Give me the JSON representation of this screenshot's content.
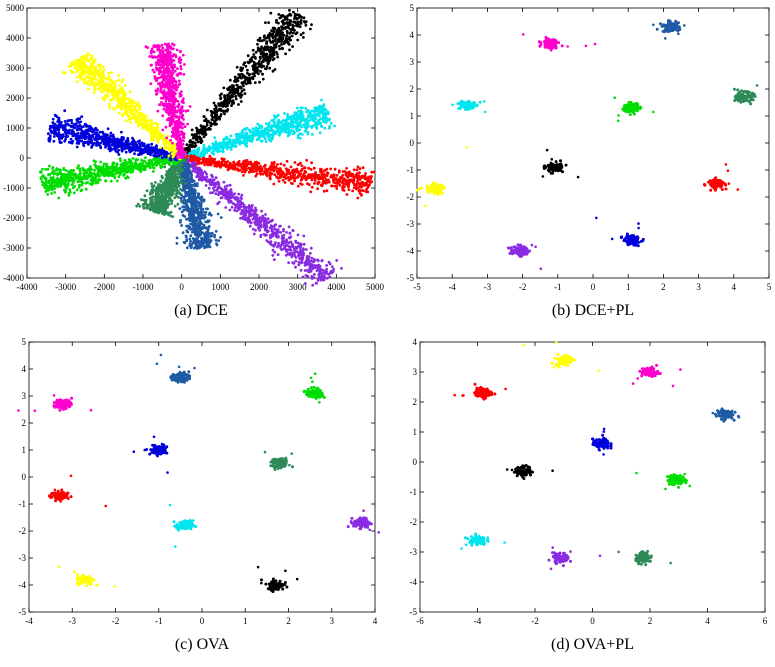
{
  "chart_data": [
    {
      "type": "scatter",
      "caption": "(a) DCE",
      "xlim": [
        -4000,
        5000
      ],
      "ylim": [
        -4000,
        5000
      ],
      "xticks": [
        -4000,
        -3000,
        -2000,
        -1000,
        0,
        1000,
        2000,
        3000,
        4000,
        5000
      ],
      "yticks": [
        -4000,
        -3000,
        -2000,
        -1000,
        0,
        1000,
        2000,
        3000,
        4000,
        5000
      ],
      "series": [
        {
          "color": "#000000",
          "shape": "ray",
          "from": [
            0,
            0
          ],
          "to": [
            3000,
            4800
          ]
        },
        {
          "color": "#00e5ee",
          "shape": "ray",
          "from": [
            0,
            0
          ],
          "to": [
            3800,
            1500
          ]
        },
        {
          "color": "#ff0000",
          "shape": "ray",
          "from": [
            0,
            0
          ],
          "to": [
            4900,
            -900
          ]
        },
        {
          "color": "#8a2be2",
          "shape": "ray",
          "from": [
            0,
            0
          ],
          "to": [
            3800,
            -4000
          ]
        },
        {
          "color": "#1f5aa6",
          "shape": "ray",
          "from": [
            0,
            0
          ],
          "to": [
            550,
            -3000
          ]
        },
        {
          "color": "#2e8b57",
          "shape": "ray",
          "from": [
            0,
            0
          ],
          "to": [
            -700,
            -1800
          ]
        },
        {
          "color": "#00dd00",
          "shape": "ray",
          "from": [
            0,
            0
          ],
          "to": [
            -3600,
            -850
          ]
        },
        {
          "color": "#0000dd",
          "shape": "ray",
          "from": [
            0,
            0
          ],
          "to": [
            -3400,
            1050
          ]
        },
        {
          "color": "#ffff00",
          "shape": "ray",
          "from": [
            0,
            0
          ],
          "to": [
            -2700,
            3300
          ]
        },
        {
          "color": "#ff00cc",
          "shape": "ray",
          "from": [
            0,
            0
          ],
          "to": [
            -500,
            3800
          ]
        }
      ]
    },
    {
      "type": "scatter",
      "caption": "(b) DCE+PL",
      "xlim": [
        -5,
        5
      ],
      "ylim": [
        -5,
        5
      ],
      "xticks": [
        -5,
        -4,
        -3,
        -2,
        -1,
        0,
        1,
        2,
        3,
        4,
        5
      ],
      "yticks": [
        -5,
        -4,
        -3,
        -2,
        -1,
        0,
        1,
        2,
        3,
        4,
        5
      ],
      "series": [
        {
          "color": "#1f5aa6",
          "center": [
            2.2,
            4.3
          ]
        },
        {
          "color": "#ff00cc",
          "center": [
            -1.2,
            3.7
          ]
        },
        {
          "color": "#00e5ee",
          "center": [
            -3.6,
            1.4
          ]
        },
        {
          "color": "#00dd00",
          "center": [
            1.1,
            1.3
          ]
        },
        {
          "color": "#2e8b57",
          "center": [
            4.3,
            1.7
          ]
        },
        {
          "color": "#000000",
          "center": [
            -1.1,
            -0.9
          ]
        },
        {
          "color": "#ffff00",
          "center": [
            -4.5,
            -1.7
          ]
        },
        {
          "color": "#ff0000",
          "center": [
            3.5,
            -1.5
          ]
        },
        {
          "color": "#0000dd",
          "center": [
            1.1,
            -3.6
          ]
        },
        {
          "color": "#8a2be2",
          "center": [
            -2.1,
            -4.0
          ]
        }
      ]
    },
    {
      "type": "scatter",
      "caption": "(c) OVA",
      "xlim": [
        -4,
        4
      ],
      "ylim": [
        -5,
        5
      ],
      "xticks": [
        -4,
        -3,
        -2,
        -1,
        0,
        1,
        2,
        3,
        4
      ],
      "yticks": [
        -5,
        -4,
        -3,
        -2,
        -1,
        0,
        1,
        2,
        3,
        4,
        5
      ],
      "series": [
        {
          "color": "#1f5aa6",
          "center": [
            -0.5,
            3.7
          ]
        },
        {
          "color": "#ff00cc",
          "center": [
            -3.2,
            2.7
          ]
        },
        {
          "color": "#00dd00",
          "center": [
            2.6,
            3.1
          ]
        },
        {
          "color": "#0000dd",
          "center": [
            -1.0,
            1.0
          ]
        },
        {
          "color": "#2e8b57",
          "center": [
            1.8,
            0.5
          ]
        },
        {
          "color": "#ff0000",
          "center": [
            -3.3,
            -0.7
          ]
        },
        {
          "color": "#00e5ee",
          "center": [
            -0.4,
            -1.8
          ]
        },
        {
          "color": "#8a2be2",
          "center": [
            3.7,
            -1.7
          ]
        },
        {
          "color": "#ffff00",
          "center": [
            -2.7,
            -3.8
          ]
        },
        {
          "color": "#000000",
          "center": [
            1.7,
            -4.0
          ]
        }
      ]
    },
    {
      "type": "scatter",
      "caption": "(d) OVA+PL",
      "xlim": [
        -6,
        6
      ],
      "ylim": [
        -5,
        4
      ],
      "xticks": [
        -6,
        -4,
        -2,
        0,
        2,
        4,
        6
      ],
      "yticks": [
        -5,
        -4,
        -3,
        -2,
        -1,
        0,
        1,
        2,
        3,
        4
      ],
      "series": [
        {
          "color": "#ffff00",
          "center": [
            -1.0,
            3.4
          ]
        },
        {
          "color": "#ff00cc",
          "center": [
            2.0,
            3.0
          ]
        },
        {
          "color": "#ff0000",
          "center": [
            -3.8,
            2.3
          ]
        },
        {
          "color": "#1f5aa6",
          "center": [
            4.6,
            1.6
          ]
        },
        {
          "color": "#0000dd",
          "center": [
            0.3,
            0.6
          ]
        },
        {
          "color": "#000000",
          "center": [
            -2.4,
            -0.3
          ]
        },
        {
          "color": "#00dd00",
          "center": [
            2.9,
            -0.6
          ]
        },
        {
          "color": "#00e5ee",
          "center": [
            -4.0,
            -2.6
          ]
        },
        {
          "color": "#8a2be2",
          "center": [
            -1.1,
            -3.2
          ]
        },
        {
          "color": "#2e8b57",
          "center": [
            1.8,
            -3.2
          ]
        }
      ]
    }
  ]
}
